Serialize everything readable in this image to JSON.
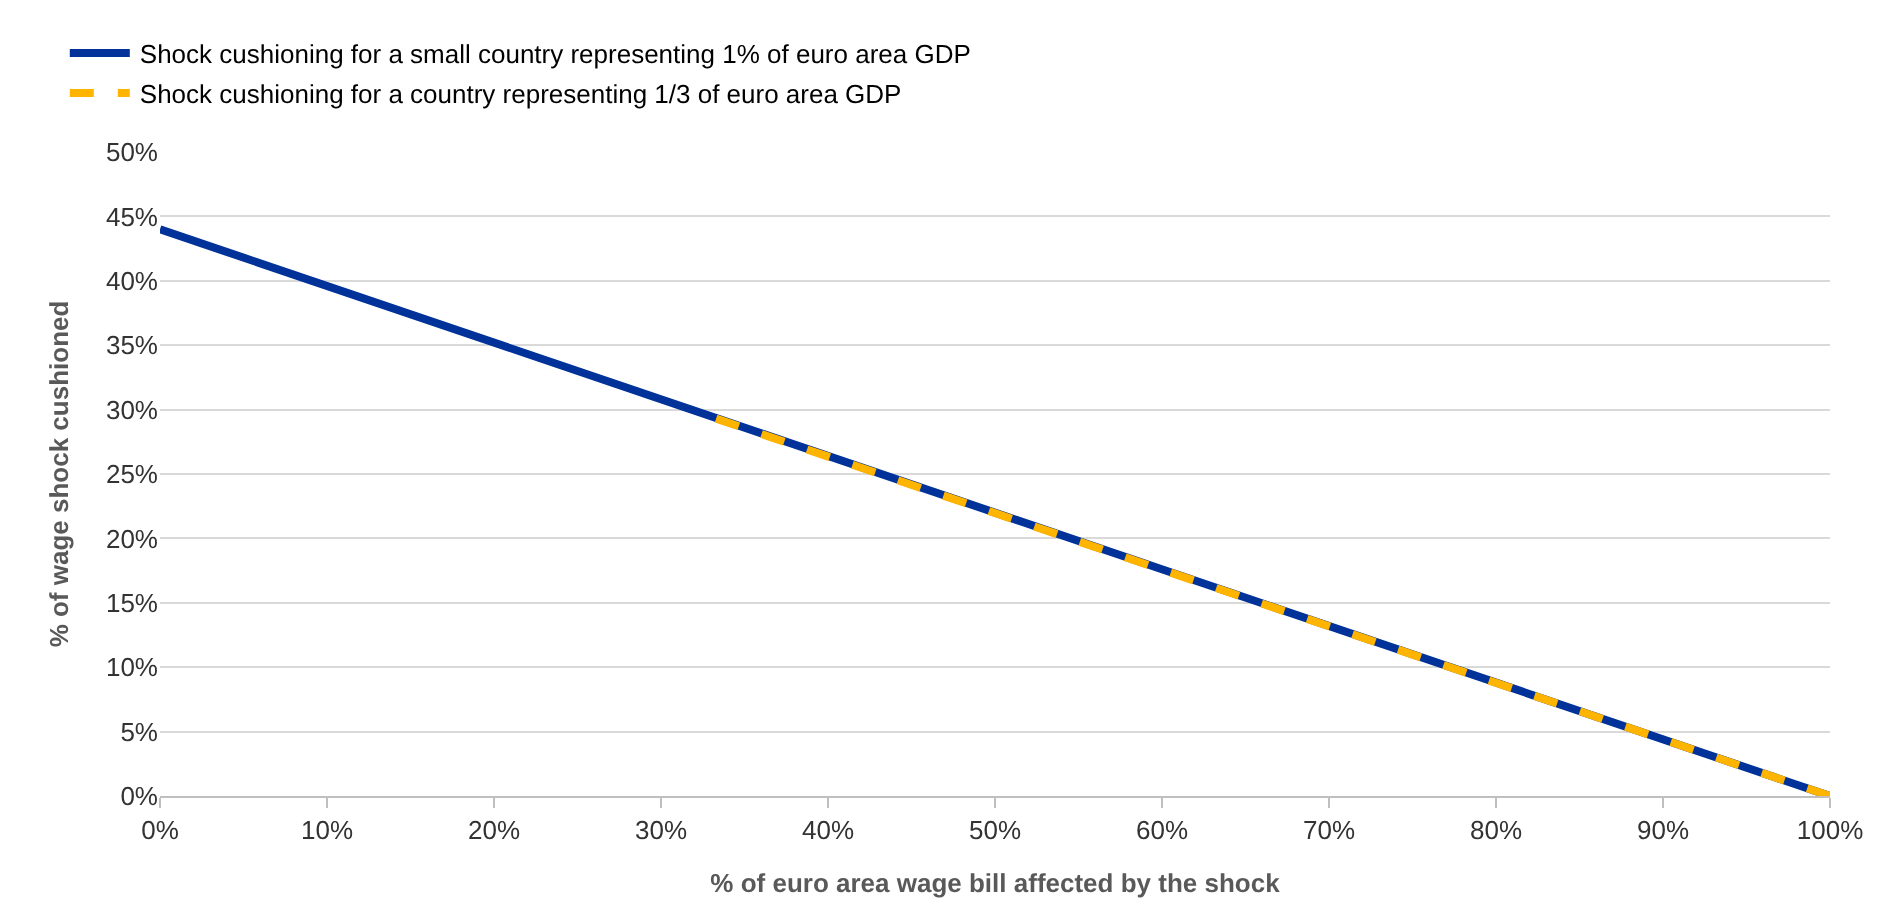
{
  "chart_data": {
    "type": "line",
    "xlabel": "% of euro area wage bill affected by the shock",
    "ylabel": "% of wage shock cushioned",
    "series": [
      {
        "name": "Shock cushioning for a small country representing 1% of euro area GDP",
        "color": "#003299",
        "x": [
          0,
          100
        ],
        "values": [
          44,
          0
        ],
        "line_style": "solid"
      },
      {
        "name": "Shock cushioning for a country representing 1/3 of euro area GDP",
        "color": "#ffb400",
        "x": [
          33.3,
          100
        ],
        "values": [
          29.3,
          0
        ],
        "line_style": "dashed"
      }
    ],
    "xlim": [
      0,
      100
    ],
    "ylim": [
      0,
      50
    ],
    "xticks": [
      {
        "value": 0,
        "label": "0%"
      },
      {
        "value": 10,
        "label": "10%"
      },
      {
        "value": 20,
        "label": "20%"
      },
      {
        "value": 30,
        "label": "30%"
      },
      {
        "value": 40,
        "label": "40%"
      },
      {
        "value": 50,
        "label": "50%"
      },
      {
        "value": 60,
        "label": "60%"
      },
      {
        "value": 70,
        "label": "70%"
      },
      {
        "value": 80,
        "label": "80%"
      },
      {
        "value": 90,
        "label": "90%"
      },
      {
        "value": 100,
        "label": "100%"
      }
    ],
    "yticks": [
      {
        "value": 0,
        "label": "0%"
      },
      {
        "value": 5,
        "label": "5%"
      },
      {
        "value": 10,
        "label": "10%"
      },
      {
        "value": 15,
        "label": "15%"
      },
      {
        "value": 20,
        "label": "20%"
      },
      {
        "value": 25,
        "label": "25%"
      },
      {
        "value": 30,
        "label": "30%"
      },
      {
        "value": 35,
        "label": "35%"
      },
      {
        "value": 40,
        "label": "40%"
      },
      {
        "value": 45,
        "label": "45%"
      },
      {
        "value": 50,
        "label": "50%"
      }
    ],
    "grid": "y",
    "legend": "top left",
    "marker": "none"
  }
}
